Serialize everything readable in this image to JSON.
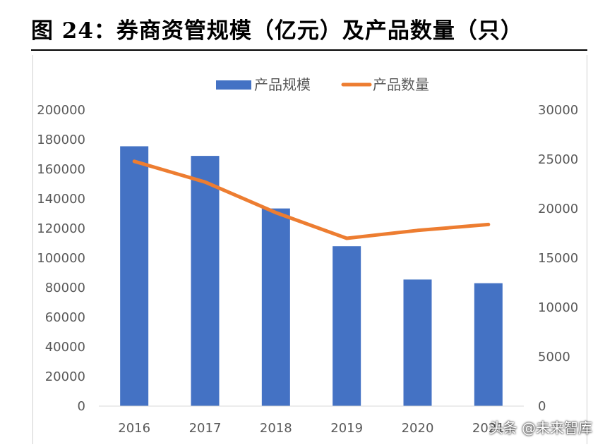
{
  "header": {
    "title": "图 24：券商资管规模（亿元）及产品数量（只）"
  },
  "chart_data": {
    "type": "bar",
    "categories": [
      "2016",
      "2017",
      "2018",
      "2019",
      "2020",
      "2021"
    ],
    "series": [
      {
        "name": "产品规模",
        "type": "bar",
        "axis": "left",
        "color": "#4472C4",
        "values": [
          175500,
          169000,
          133500,
          108000,
          85500,
          83000
        ]
      },
      {
        "name": "产品数量",
        "type": "line",
        "axis": "right",
        "color": "#ED7D31",
        "values": [
          24800,
          22700,
          19600,
          17000,
          17800,
          18400
        ]
      }
    ],
    "ylim": [
      0,
      200000
    ],
    "y_ticks": [
      "200000",
      "180000",
      "160000",
      "140000",
      "120000",
      "100000",
      "80000",
      "60000",
      "40000",
      "20000",
      "0"
    ],
    "y2lim": [
      0,
      30000
    ],
    "y2_ticks": [
      "30000",
      "25000",
      "20000",
      "15000",
      "10000",
      "5000",
      "0"
    ],
    "grid": false,
    "legend_position": "top"
  },
  "watermark": "头条 @未来智库"
}
